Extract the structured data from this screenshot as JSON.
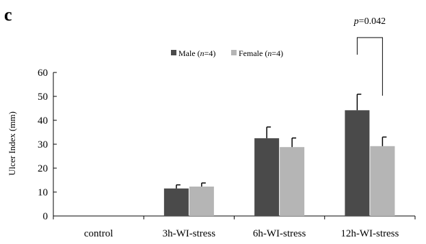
{
  "panel_label": "c",
  "colors": {
    "male": "#4a4a4a",
    "female": "#b5b5b5",
    "axis": "#000000"
  },
  "chart_data": {
    "type": "bar",
    "categories": [
      "control",
      "3h-WI-stress",
      "6h-WI-stress",
      "12h-WI-stress"
    ],
    "series": [
      {
        "name": "Male (n=4)",
        "name_prefix": "Male (",
        "name_italic": "n",
        "name_suffix": "=4)",
        "values": [
          0,
          11.5,
          32.5,
          44.2
        ],
        "errors": [
          0,
          1.5,
          4.7,
          6.7
        ]
      },
      {
        "name": "Female (n=4)",
        "name_prefix": "Female (",
        "name_italic": "n",
        "name_suffix": "=4)",
        "values": [
          0,
          12.3,
          28.8,
          29.2
        ],
        "errors": [
          0,
          1.5,
          3.8,
          3.8
        ]
      }
    ],
    "ylabel": "Ulcer Index (mm)",
    "ylim": [
      0,
      60
    ],
    "yticks": [
      0,
      10,
      20,
      30,
      40,
      50,
      60
    ],
    "legend_position": "top-center",
    "grid": false,
    "annotation": {
      "category": "12h-WI-stress",
      "prefix": "p",
      "value": "=0.042"
    }
  }
}
